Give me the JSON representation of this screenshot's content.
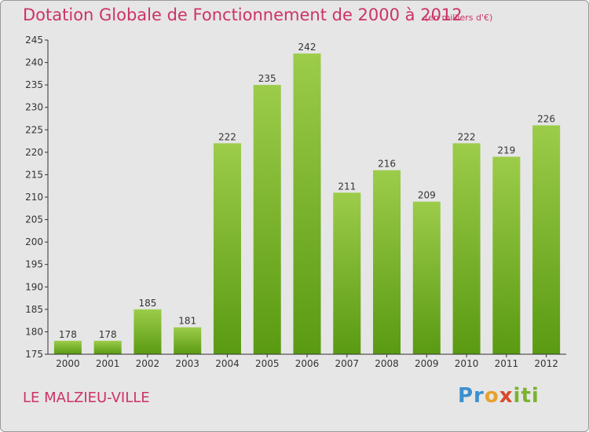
{
  "chart_data": {
    "type": "bar",
    "title": "Dotation Globale de Fonctionnement de 2000 à 2012",
    "subtitle": "(en milliers d'€)",
    "categories": [
      "2000",
      "2001",
      "2002",
      "2003",
      "2004",
      "2005",
      "2006",
      "2007",
      "2008",
      "2009",
      "2010",
      "2011",
      "2012"
    ],
    "values": [
      178,
      178,
      185,
      181,
      222,
      235,
      242,
      211,
      216,
      209,
      222,
      219,
      226
    ],
    "ylim": [
      175,
      245
    ],
    "yticks": [
      175,
      180,
      185,
      190,
      195,
      200,
      205,
      210,
      215,
      220,
      225,
      230,
      235,
      240,
      245
    ],
    "grid": false,
    "colors": {
      "bar_top": "#9ccc4a",
      "bar_bottom": "#5a9a12",
      "axis": "#333333",
      "text": "#333333"
    }
  },
  "footer": {
    "commune": "LE MALZIEU-VILLE",
    "logo": "Proxiti"
  }
}
